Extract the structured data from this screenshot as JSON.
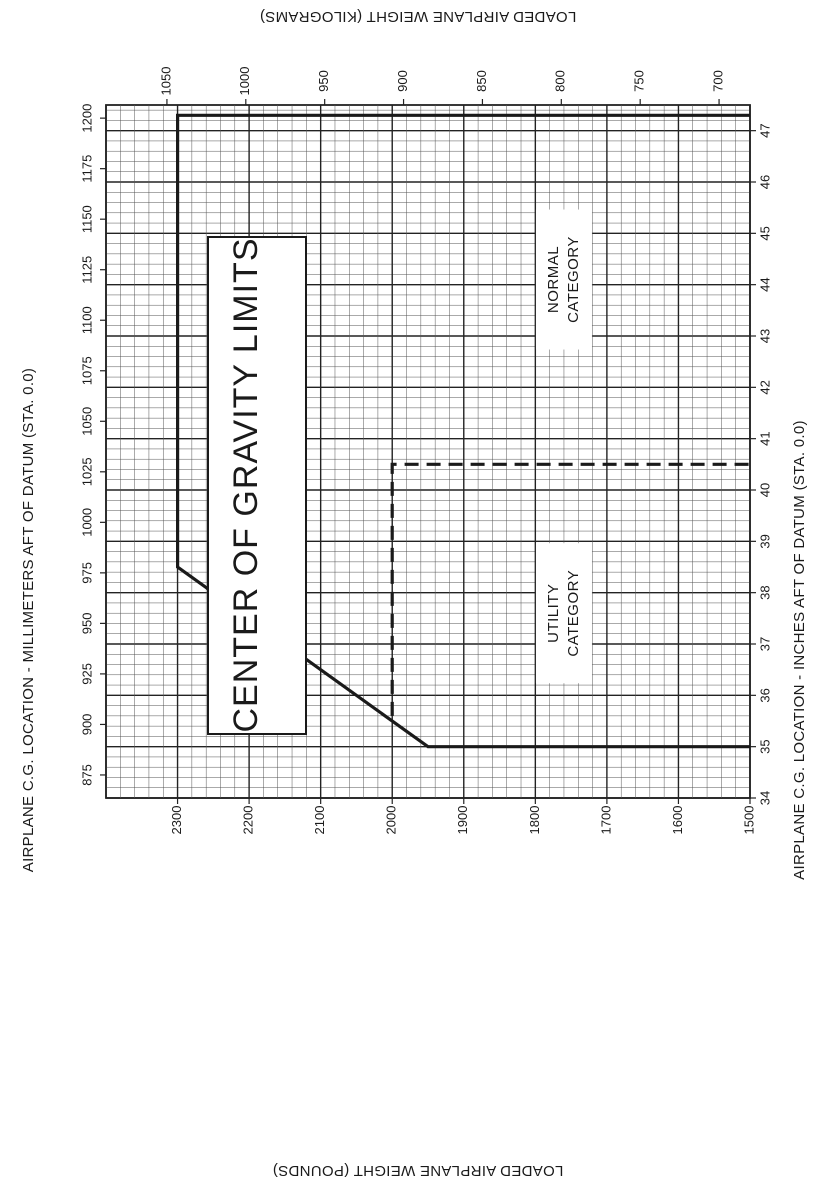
{
  "chart_data": {
    "type": "line",
    "title": "CENTER OF GRAVITY LIMITS",
    "x_axis_bottom": {
      "label": "AIRPLANE C.G. LOCATION - INCHES AFT OF DATUM (STA. 0.0)",
      "ticks": [
        "34",
        "35",
        "36",
        "37",
        "38",
        "39",
        "40",
        "41",
        "42",
        "43",
        "44",
        "45",
        "46",
        "47"
      ],
      "range": [
        34,
        47.5
      ]
    },
    "x_axis_top": {
      "label": "AIRPLANE C.G. LOCATION - MILLIMETERS AFT OF DATUM (STA. 0.0)",
      "ticks": [
        "875",
        "900",
        "925",
        "950",
        "975",
        "1000",
        "1025",
        "1050",
        "1075",
        "1100",
        "1125",
        "1150",
        "1175",
        "1200"
      ]
    },
    "y_axis_left": {
      "label": "LOADED AIRPLANE WEIGHT (POUNDS)",
      "ticks": [
        "1500",
        "1600",
        "1700",
        "1800",
        "1900",
        "2000",
        "2100",
        "2200",
        "2300"
      ],
      "range": [
        1500,
        2400
      ]
    },
    "y_axis_right": {
      "label": "LOADED AIRPLANE WEIGHT (KILOGRAMS)",
      "ticks": [
        "700",
        "750",
        "800",
        "850",
        "900",
        "950",
        "1000",
        "1050"
      ]
    },
    "series": [
      {
        "name": "NORMAL CATEGORY",
        "style": "solid",
        "points": [
          [
            35.0,
            1500
          ],
          [
            35.0,
            1950
          ],
          [
            38.5,
            2300
          ],
          [
            47.3,
            2300
          ],
          [
            47.3,
            1500
          ]
        ]
      },
      {
        "name": "UTILITY CATEGORY",
        "style": "dashed",
        "points": [
          [
            35.6,
            2000
          ],
          [
            40.5,
            2000
          ],
          [
            40.5,
            1500
          ]
        ]
      }
    ],
    "annotations": [
      "NORMAL CATEGORY",
      "UTILITY CATEGORY"
    ],
    "grid": true,
    "orientation": "rotated-90-clockwise"
  }
}
